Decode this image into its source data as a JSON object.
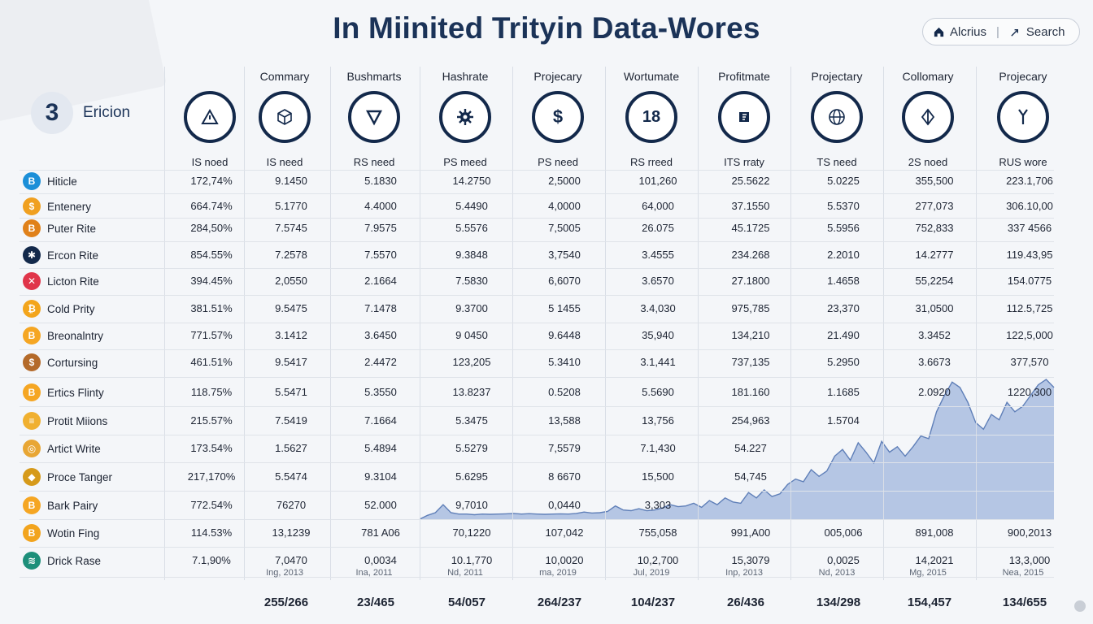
{
  "title": "In Miinited Trityin Data-Wores",
  "nav": {
    "home_label": "Alcrius",
    "search_label": "Search"
  },
  "brand": {
    "badge": "3",
    "name": "Ericion"
  },
  "columns": [
    {
      "header": "",
      "sub": "IS noed",
      "icon": "warning-icon"
    },
    {
      "header": "Commary",
      "sub": "IS need",
      "icon": "cube-icon"
    },
    {
      "header": "Bushmarts",
      "sub": "RS need",
      "icon": "triangle-down-icon"
    },
    {
      "header": "Hashrate",
      "sub": "PS meed",
      "icon": "gear-icon"
    },
    {
      "header": "Projecary",
      "sub": "PS need",
      "icon": "dollar-icon"
    },
    {
      "header": "Wortumate",
      "sub": "RS rreed",
      "icon": "number-18-icon"
    },
    {
      "header": "Profitmate",
      "sub": "ITS rraty",
      "icon": "chip-icon"
    },
    {
      "header": "Projectary",
      "sub": "TS need",
      "icon": "globe-icon"
    },
    {
      "header": "Collomary",
      "sub": "2S noed",
      "icon": "diamond-icon"
    },
    {
      "header": "Projecary",
      "sub": "RUS wore",
      "icon": "tool-icon"
    }
  ],
  "column_icons_text": {
    "number-18-icon": "18",
    "dollar-icon": "$"
  },
  "rows": [
    {
      "name": "Hiticle",
      "coin_glyph": "B",
      "coin_color": "#1b8fd8",
      "values": [
        "172,74%",
        "9.1450",
        "5.1830",
        "14.2750",
        "2,5000",
        "101,260",
        "25.5622",
        "5.0225",
        "355,500",
        "223.1,706"
      ]
    },
    {
      "name": "Entenery",
      "coin_glyph": "$",
      "coin_color": "#f0a020",
      "values": [
        "664.74%",
        "5.1770",
        "4.4000",
        "5.4490",
        "4,0000",
        "64,000",
        "37.1550",
        "5.5370",
        "277,073",
        "306.10,00"
      ]
    },
    {
      "name": "Puter Rite",
      "coin_glyph": "B",
      "coin_color": "#e0811a",
      "values": [
        "284,50%",
        "7.5745",
        "7.9575",
        "5.5576",
        "7,5005",
        "26.075",
        "45.1725",
        "5.5956",
        "752,833",
        "337 4566"
      ]
    },
    {
      "name": "Ercon Rite",
      "coin_glyph": "✱",
      "coin_color": "#13294b",
      "values": [
        "854.55%",
        "7.2578",
        "7.5570",
        "9.3848",
        "3,7540",
        "3.4555",
        "234.268",
        "2.2010",
        "14.2777",
        "119.43,95"
      ]
    },
    {
      "name": "Licton Rite",
      "coin_glyph": "✕",
      "coin_color": "#e0354a",
      "values": [
        "394.45%",
        "2,0550",
        "2.1664",
        "7.5830",
        "6,6070",
        "3.6570",
        "27.1800",
        "1.4658",
        "55,2254",
        "154.0775"
      ]
    },
    {
      "name": "Cold Prity",
      "coin_glyph": "₿",
      "coin_color": "#f3a51c",
      "values": [
        "381.51%",
        "9.5475",
        "7.1478",
        "9.3700",
        "5 1455",
        "3.4,030",
        "975,785",
        "23,370",
        "31,0500",
        "112.5,725"
      ]
    },
    {
      "name": "Breonalntry",
      "coin_glyph": "B",
      "coin_color": "#f5a623",
      "values": [
        "771.57%",
        "3.1412",
        "3.6450",
        "9 0450",
        "9.6448",
        "35,940",
        "134,210",
        "21.490",
        "3.3452",
        "122,5,000"
      ]
    },
    {
      "name": "Cortursing",
      "coin_glyph": "$",
      "coin_color": "#b46a2a",
      "values": [
        "461.51%",
        "9.5417",
        "2.4472",
        "123,205",
        "5.3410",
        "3.1,441",
        "737,135",
        "5.2950",
        "3.6673",
        "377,570"
      ]
    },
    {
      "name": "Ertics Flinty",
      "coin_glyph": "B",
      "coin_color": "#f5a623",
      "values": [
        "118.75%",
        "5.5471",
        "5.3550",
        "13.8237",
        "0.5208",
        "5.5690",
        "181.160",
        "1.1685",
        "2.0920",
        "1220,300"
      ]
    },
    {
      "name": "Protit Miions",
      "coin_glyph": "≡",
      "coin_color": "#f0b030",
      "values": [
        "215.57%",
        "7.5419",
        "7.1664",
        "5.3475",
        "13,588",
        "13,756",
        "254,963",
        "1.5704",
        "",
        ""
      ]
    },
    {
      "name": "Artict Write",
      "coin_glyph": "◎",
      "coin_color": "#e8a634",
      "values": [
        "173.54%",
        "1.5627",
        "5.4894",
        "5.5279",
        "7,5579",
        "7.1,430",
        "54.227",
        "",
        "",
        ""
      ]
    },
    {
      "name": "Proce Tanger",
      "coin_glyph": "◆",
      "coin_color": "#d69a1a",
      "values": [
        "217,170%",
        "5.5474",
        "9.3104",
        "5.6295",
        "8 6670",
        "15,500",
        "54,745",
        "",
        "",
        ""
      ]
    },
    {
      "name": "Bark Pairy",
      "coin_glyph": "B",
      "coin_color": "#f5a623",
      "values": [
        "772.54%",
        "76270",
        "52.000",
        "9,7010",
        "0,0440",
        "3,303",
        "",
        "",
        "",
        ""
      ]
    },
    {
      "name": "Wotin Fing",
      "coin_glyph": "B",
      "coin_color": "#f2a41e",
      "values": [
        "114.53%",
        "13,1239",
        "781 A06",
        "70,1220",
        "107,042",
        "755,058",
        "991,A00",
        "005,006",
        "891,008",
        "900,2013"
      ]
    },
    {
      "name": "Drick Rase",
      "coin_glyph": "≋",
      "coin_color": "#1d8f7a",
      "values": [
        "7.1,90%",
        "7,0470",
        "0,0034",
        "10.1,770",
        "10,0020",
        "10,2,700",
        "15,3079",
        "0,0025",
        "14,2021",
        "13,3,000"
      ]
    }
  ],
  "dates": [
    "",
    "Ing, 2013",
    "Ina, 2011",
    "Nd, 2011",
    "ma, 2019",
    "Jul, 2019",
    "Inp, 2013",
    "Nd, 2013",
    "Mg, 2015",
    "Nea, 2015"
  ],
  "totals": [
    "",
    "255/266",
    "23/465",
    "54/057",
    "264/237",
    "104/237",
    "26/436",
    "134/298",
    "154,457",
    "134/655"
  ],
  "chart_data": {
    "type": "area",
    "color": "#a9bde0",
    "line_color": "#5f7fb8",
    "values": [
      0,
      1,
      3,
      9,
      3,
      2,
      2,
      1.5,
      2,
      1.8,
      2,
      2.2,
      2.5,
      2,
      2.3,
      2,
      1.8,
      2,
      2.2,
      2,
      2.5,
      3.5,
      2.8,
      3,
      4,
      8,
      5,
      4.5,
      6,
      4.5,
      5,
      6.5,
      9,
      7.5,
      8,
      10,
      7,
      12,
      9,
      14,
      11,
      10,
      18,
      14,
      20,
      15,
      17,
      24,
      28,
      26,
      35,
      30,
      34,
      45,
      50,
      42,
      55,
      48,
      40,
      56,
      48,
      52,
      45,
      52,
      60,
      58,
      78,
      90,
      100,
      96,
      85,
      70,
      65,
      76,
      72,
      85,
      78,
      82,
      90,
      98,
      102,
      96
    ]
  }
}
